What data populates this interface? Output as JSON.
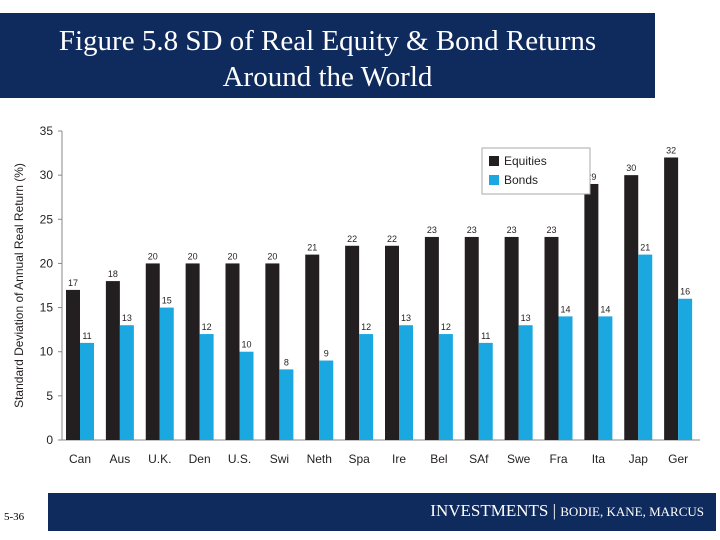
{
  "header": {
    "title_line1": "Figure 5.8 SD of Real Equity & Bond Returns",
    "title_line2": "Around the World"
  },
  "footer": {
    "slide_number": "5-36",
    "book": "INVESTMENTS",
    "separator": " | ",
    "authors": "BODIE, KANE, MARCUS"
  },
  "colors": {
    "equities": "#231f20",
    "bonds": "#1ba7e0",
    "header_bg": "#0f2a5c"
  },
  "chart_data": {
    "type": "bar",
    "title": "",
    "xlabel": "",
    "ylabel": "Standard Deviation of Annual Real Return (%)",
    "ylim": [
      0,
      35
    ],
    "yticks": [
      0,
      5,
      10,
      15,
      20,
      25,
      30,
      35
    ],
    "grid": false,
    "legend_position": "top-right",
    "categories": [
      "Can",
      "Aus",
      "U.K.",
      "Den",
      "U.S.",
      "Swi",
      "Neth",
      "Spa",
      "Ire",
      "Bel",
      "SAf",
      "Swe",
      "Fra",
      "Ita",
      "Jap",
      "Ger"
    ],
    "series": [
      {
        "name": "Equities",
        "values": [
          17,
          18,
          20,
          20,
          20,
          20,
          21,
          22,
          22,
          23,
          23,
          23,
          23,
          29,
          30,
          32
        ]
      },
      {
        "name": "Bonds",
        "values": [
          11,
          13,
          15,
          12,
          10,
          8,
          9,
          12,
          13,
          12,
          11,
          13,
          14,
          14,
          21,
          16
        ]
      }
    ]
  }
}
